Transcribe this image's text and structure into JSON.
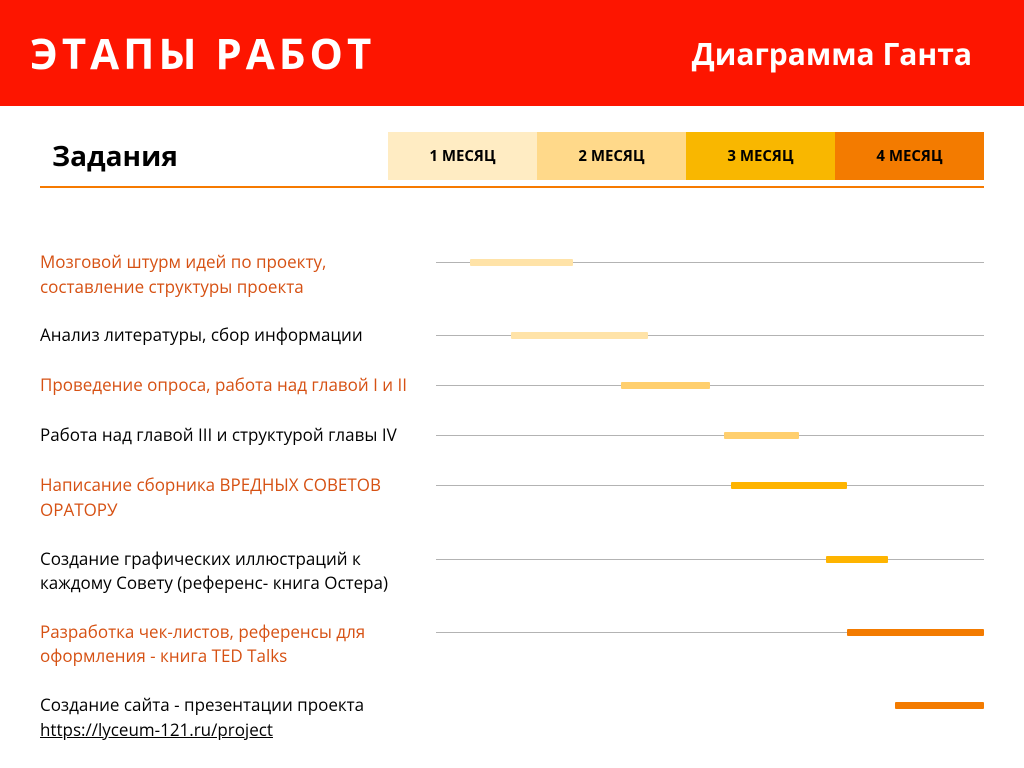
{
  "header": {
    "title": "ЭТАПЫ РАБОТ",
    "subtitle": "Диаграмма Ганта",
    "bg_color": "#fd1500",
    "title_color": "#ffffff",
    "subtitle_color": "#ffffff",
    "title_fontsize": 42,
    "subtitle_fontsize": 30,
    "letter_spacing": 4
  },
  "tasks_label": "Задания",
  "head_rule_color": "#f67a00",
  "gridline_color": "#b3b3b3",
  "label_color_alt": "#d65113",
  "label_color_default": "#000000",
  "label_fontsize": 17,
  "page_bg": "#ffffff",
  "months": [
    {
      "label": "1 МЕСЯЦ",
      "bg": "#ffecc3"
    },
    {
      "label": "2 МЕСЯЦ",
      "bg": "#ffd98a"
    },
    {
      "label": "3 МЕСЯЦ",
      "bg": "#f9b700"
    },
    {
      "label": "4 МЕСЯЦ",
      "bg": "#f37b00"
    }
  ],
  "timeline": {
    "start": 0,
    "end": 4
  },
  "tasks": [
    {
      "label": "Мозговой штурм идей по проекту, составление структуры проекта",
      "color": "#d65113",
      "bar": {
        "start": 0.25,
        "end": 1.0,
        "color": "#ffe3a8"
      },
      "has_gridline": true
    },
    {
      "label": "Анализ литературы, сбор информации",
      "color": "#000000",
      "bar": {
        "start": 0.55,
        "end": 1.55,
        "color": "#ffe3a8"
      },
      "has_gridline": true
    },
    {
      "label": "Проведение опроса, работа над главой I и II",
      "color": "#d65113",
      "bar": {
        "start": 1.35,
        "end": 2.0,
        "color": "#ffcf6e"
      },
      "has_gridline": true
    },
    {
      "label": "Работа над главой III и структурой главы IV",
      "color": "#000000",
      "bar": {
        "start": 2.1,
        "end": 2.65,
        "color": "#ffcf6e"
      },
      "has_gridline": true
    },
    {
      "label": "Написание сборника ВРЕДНЫХ СОВЕТОВ ОРАТОРУ",
      "color": "#d65113",
      "bar": {
        "start": 2.15,
        "end": 3.0,
        "color": "#feb400"
      },
      "has_gridline": true
    },
    {
      "label": "Создание графических иллюстраций к каждому Совету (референс- книга Остера)",
      "color": "#000000",
      "bar": {
        "start": 2.85,
        "end": 3.3,
        "color": "#feb400"
      },
      "has_gridline": true
    },
    {
      "label": "Разработка чек-листов, референсы для оформления - книга TED Talks",
      "color": "#d65113",
      "bar": {
        "start": 3.0,
        "end": 4.0,
        "color": "#f37b00"
      },
      "has_gridline": true
    },
    {
      "label": "Создание сайта - презентации проекта",
      "link": "https://lyceum-121.ru/project",
      "color": "#000000",
      "bar": {
        "start": 3.35,
        "end": 4.0,
        "color": "#f37b00"
      },
      "has_gridline": false
    }
  ]
}
